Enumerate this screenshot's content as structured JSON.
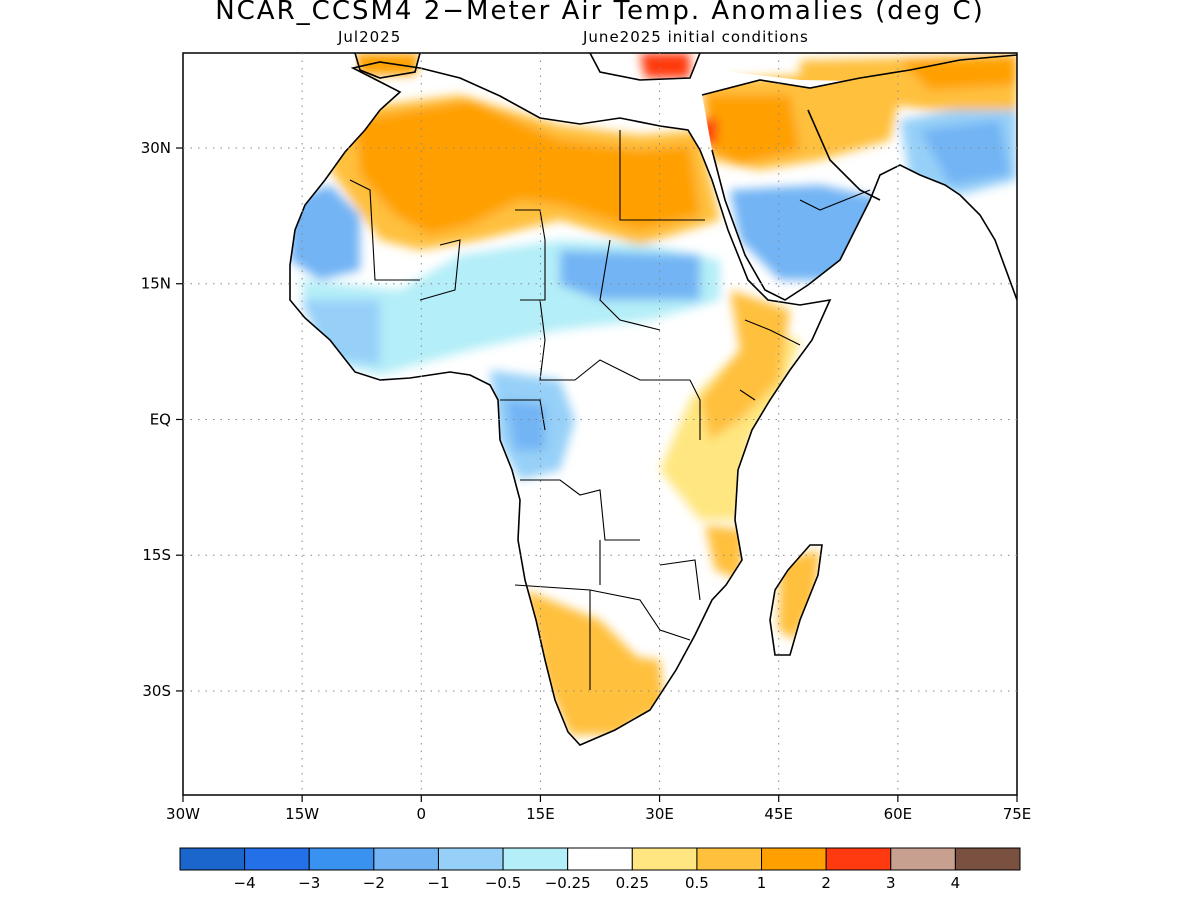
{
  "title": "NCAR_CCSM4 2−Meter Air Temp. Anomalies (deg C)",
  "subtitle_left": "Jul2025",
  "subtitle_right": "June2025 initial conditions",
  "map": {
    "lon_range": [
      -30,
      75
    ],
    "lat_range": [
      -41.5,
      40.5
    ],
    "x_ticks": [
      {
        "value": -30,
        "label": "30W"
      },
      {
        "value": -15,
        "label": "15W"
      },
      {
        "value": 0,
        "label": "0"
      },
      {
        "value": 15,
        "label": "15E"
      },
      {
        "value": 30,
        "label": "30E"
      },
      {
        "value": 45,
        "label": "45E"
      },
      {
        "value": 60,
        "label": "60E"
      },
      {
        "value": 75,
        "label": "75E"
      }
    ],
    "y_ticks": [
      {
        "value": 30,
        "label": "30N"
      },
      {
        "value": 15,
        "label": "15N"
      },
      {
        "value": 0,
        "label": "EQ"
      },
      {
        "value": -15,
        "label": "15S"
      },
      {
        "value": -30,
        "label": "30S"
      }
    ],
    "grid": "dotted"
  },
  "colorbar": {
    "colors": [
      "#1a66cc",
      "#2470e8",
      "#3a92f0",
      "#72b4f4",
      "#96d0f8",
      "#b4eef8",
      "#ffffff",
      "#ffe680",
      "#ffc03c",
      "#ffa000",
      "#ff3a10",
      "#c8a090",
      "#7a5040"
    ],
    "labels": [
      "−4",
      "−3",
      "−2",
      "−1",
      "−0.5",
      "−0.25",
      "0.25",
      "0.5",
      "1",
      "2",
      "3",
      "4"
    ]
  }
}
